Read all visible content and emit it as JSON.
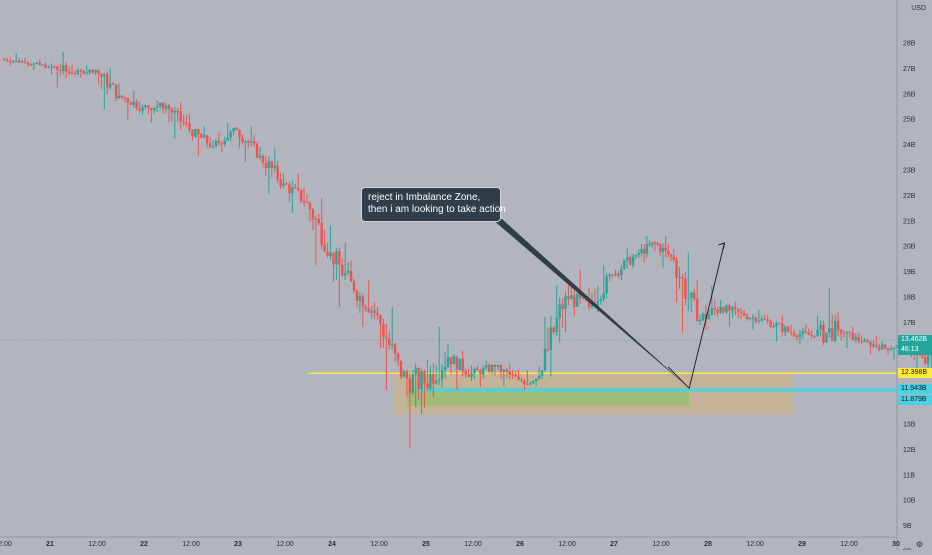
{
  "chart_data": {
    "type": "candlestick",
    "currency": "USD",
    "y_scale": "log",
    "y_ticks": [
      "28B",
      "27B",
      "26B",
      "25B",
      "24B",
      "23B",
      "22B",
      "21B",
      "20B",
      "19B",
      "18B",
      "17B",
      "16B",
      "15B",
      "14B",
      "13B",
      "12B",
      "11B",
      "10B",
      "9B",
      "8B"
    ],
    "x_ticks": [
      "12:00",
      "21",
      "12:00",
      "22",
      "12:00",
      "23",
      "12:00",
      "24",
      "12:00",
      "25",
      "12:00",
      "26",
      "12:00",
      "27",
      "12:00",
      "28",
      "12:00",
      "29",
      "12:00",
      "30"
    ],
    "price_labels": {
      "last": {
        "text": "13.462B",
        "color": "#26a69a"
      },
      "countdown": {
        "text": "46:13",
        "color": "#26a69a"
      },
      "yellow_line": {
        "text": "12.398B",
        "color": "#ffeb3b"
      },
      "cyan_upper": {
        "text": "11.943B",
        "color": "#4dd0e1"
      },
      "cyan_lower": {
        "text": "11.879B",
        "color": "#4dd0e1"
      }
    },
    "annotation": {
      "line1": "reject in Imbalance Zone,",
      "line2": "then i am looking to take action"
    },
    "colors": {
      "up": "#26a69a",
      "down": "#ef5350",
      "background": "#b2b5be"
    },
    "series": [
      {
        "t": 0.0,
        "o": 26.9,
        "h": 27.3,
        "l": 26.5,
        "c": 26.7
      },
      {
        "t": 0.5,
        "o": 26.7,
        "h": 26.9,
        "l": 26.2,
        "c": 26.4
      },
      {
        "t": 1.0,
        "o": 26.4,
        "h": 27.4,
        "l": 25.1,
        "c": 26.0
      },
      {
        "t": 1.5,
        "o": 26.0,
        "h": 26.5,
        "l": 25.7,
        "c": 26.2
      },
      {
        "t": 2.0,
        "o": 26.2,
        "h": 26.3,
        "l": 23.8,
        "c": 24.6
      },
      {
        "t": 2.5,
        "o": 24.6,
        "h": 24.9,
        "l": 23.2,
        "c": 23.9
      },
      {
        "t": 3.0,
        "o": 23.9,
        "h": 24.3,
        "l": 23.0,
        "c": 24.0
      },
      {
        "t": 3.5,
        "o": 24.0,
        "h": 24.2,
        "l": 22.1,
        "c": 22.6
      },
      {
        "t": 4.0,
        "o": 22.6,
        "h": 22.8,
        "l": 21.2,
        "c": 21.7
      },
      {
        "t": 4.5,
        "o": 21.7,
        "h": 23.0,
        "l": 21.4,
        "c": 22.6
      },
      {
        "t": 5.0,
        "o": 22.6,
        "h": 22.8,
        "l": 20.9,
        "c": 21.2
      },
      {
        "t": 5.5,
        "o": 21.2,
        "h": 21.6,
        "l": 19.3,
        "c": 19.8
      },
      {
        "t": 6.0,
        "o": 19.8,
        "h": 20.3,
        "l": 18.4,
        "c": 18.9
      },
      {
        "t": 6.5,
        "o": 18.9,
        "h": 19.1,
        "l": 16.2,
        "c": 16.7
      },
      {
        "t": 7.0,
        "o": 16.7,
        "h": 17.1,
        "l": 14.6,
        "c": 15.2
      },
      {
        "t": 7.5,
        "o": 15.2,
        "h": 15.6,
        "l": 13.9,
        "c": 14.3
      },
      {
        "t": 8.0,
        "o": 14.3,
        "h": 14.6,
        "l": 11.9,
        "c": 12.3
      },
      {
        "t": 8.5,
        "o": 12.3,
        "h": 12.7,
        "l": 10.3,
        "c": 12.1
      },
      {
        "t": 9.0,
        "o": 12.1,
        "h": 13.9,
        "l": 11.7,
        "c": 12.9
      },
      {
        "t": 9.5,
        "o": 12.9,
        "h": 13.1,
        "l": 11.9,
        "c": 12.4
      },
      {
        "t": 10.0,
        "o": 12.4,
        "h": 12.8,
        "l": 12.0,
        "c": 12.6
      },
      {
        "t": 10.5,
        "o": 12.6,
        "h": 12.7,
        "l": 12.0,
        "c": 12.2
      },
      {
        "t": 11.0,
        "o": 12.2,
        "h": 12.5,
        "l": 11.9,
        "c": 12.1
      },
      {
        "t": 11.25,
        "o": 12.1,
        "h": 12.6,
        "l": 12.0,
        "c": 12.5
      },
      {
        "t": 11.5,
        "o": 12.5,
        "h": 15.4,
        "l": 12.3,
        "c": 15.0
      },
      {
        "t": 12.0,
        "o": 15.0,
        "h": 16.0,
        "l": 14.3,
        "c": 14.6
      },
      {
        "t": 12.5,
        "o": 14.6,
        "h": 16.2,
        "l": 14.4,
        "c": 15.8
      },
      {
        "t": 13.0,
        "o": 15.8,
        "h": 16.9,
        "l": 15.6,
        "c": 16.6
      },
      {
        "t": 13.5,
        "o": 16.6,
        "h": 17.4,
        "l": 16.3,
        "c": 17.1
      },
      {
        "t": 13.9,
        "o": 17.1,
        "h": 17.4,
        "l": 16.1,
        "c": 16.4
      },
      {
        "t": 14.3,
        "o": 16.4,
        "h": 16.7,
        "l": 13.7,
        "c": 14.1
      },
      {
        "t": 14.8,
        "o": 14.1,
        "h": 15.4,
        "l": 13.8,
        "c": 14.6
      },
      {
        "t": 15.3,
        "o": 14.6,
        "h": 14.8,
        "l": 13.9,
        "c": 14.3
      },
      {
        "t": 15.8,
        "o": 14.3,
        "h": 14.5,
        "l": 13.8,
        "c": 14.1
      },
      {
        "t": 16.3,
        "o": 14.1,
        "h": 14.3,
        "l": 13.4,
        "c": 13.7
      },
      {
        "t": 16.8,
        "o": 13.7,
        "h": 14.0,
        "l": 13.3,
        "c": 13.6
      },
      {
        "t": 17.3,
        "o": 13.6,
        "h": 15.3,
        "l": 13.3,
        "c": 13.8
      },
      {
        "t": 17.8,
        "o": 13.8,
        "h": 13.9,
        "l": 13.2,
        "c": 13.4
      },
      {
        "t": 18.3,
        "o": 13.4,
        "h": 13.6,
        "l": 13.0,
        "c": 13.2
      },
      {
        "t": 18.8,
        "o": 13.2,
        "h": 13.4,
        "l": 12.8,
        "c": 13.3
      },
      {
        "t": 19.3,
        "o": 13.3,
        "h": 13.4,
        "l": 12.4,
        "c": 12.7
      },
      {
        "t": 19.65,
        "o": 12.7,
        "h": 13.2,
        "l": 12.3,
        "c": 13.1
      },
      {
        "t": 19.85,
        "o": 13.1,
        "h": 13.6,
        "l": 12.9,
        "c": 13.5
      }
    ]
  }
}
